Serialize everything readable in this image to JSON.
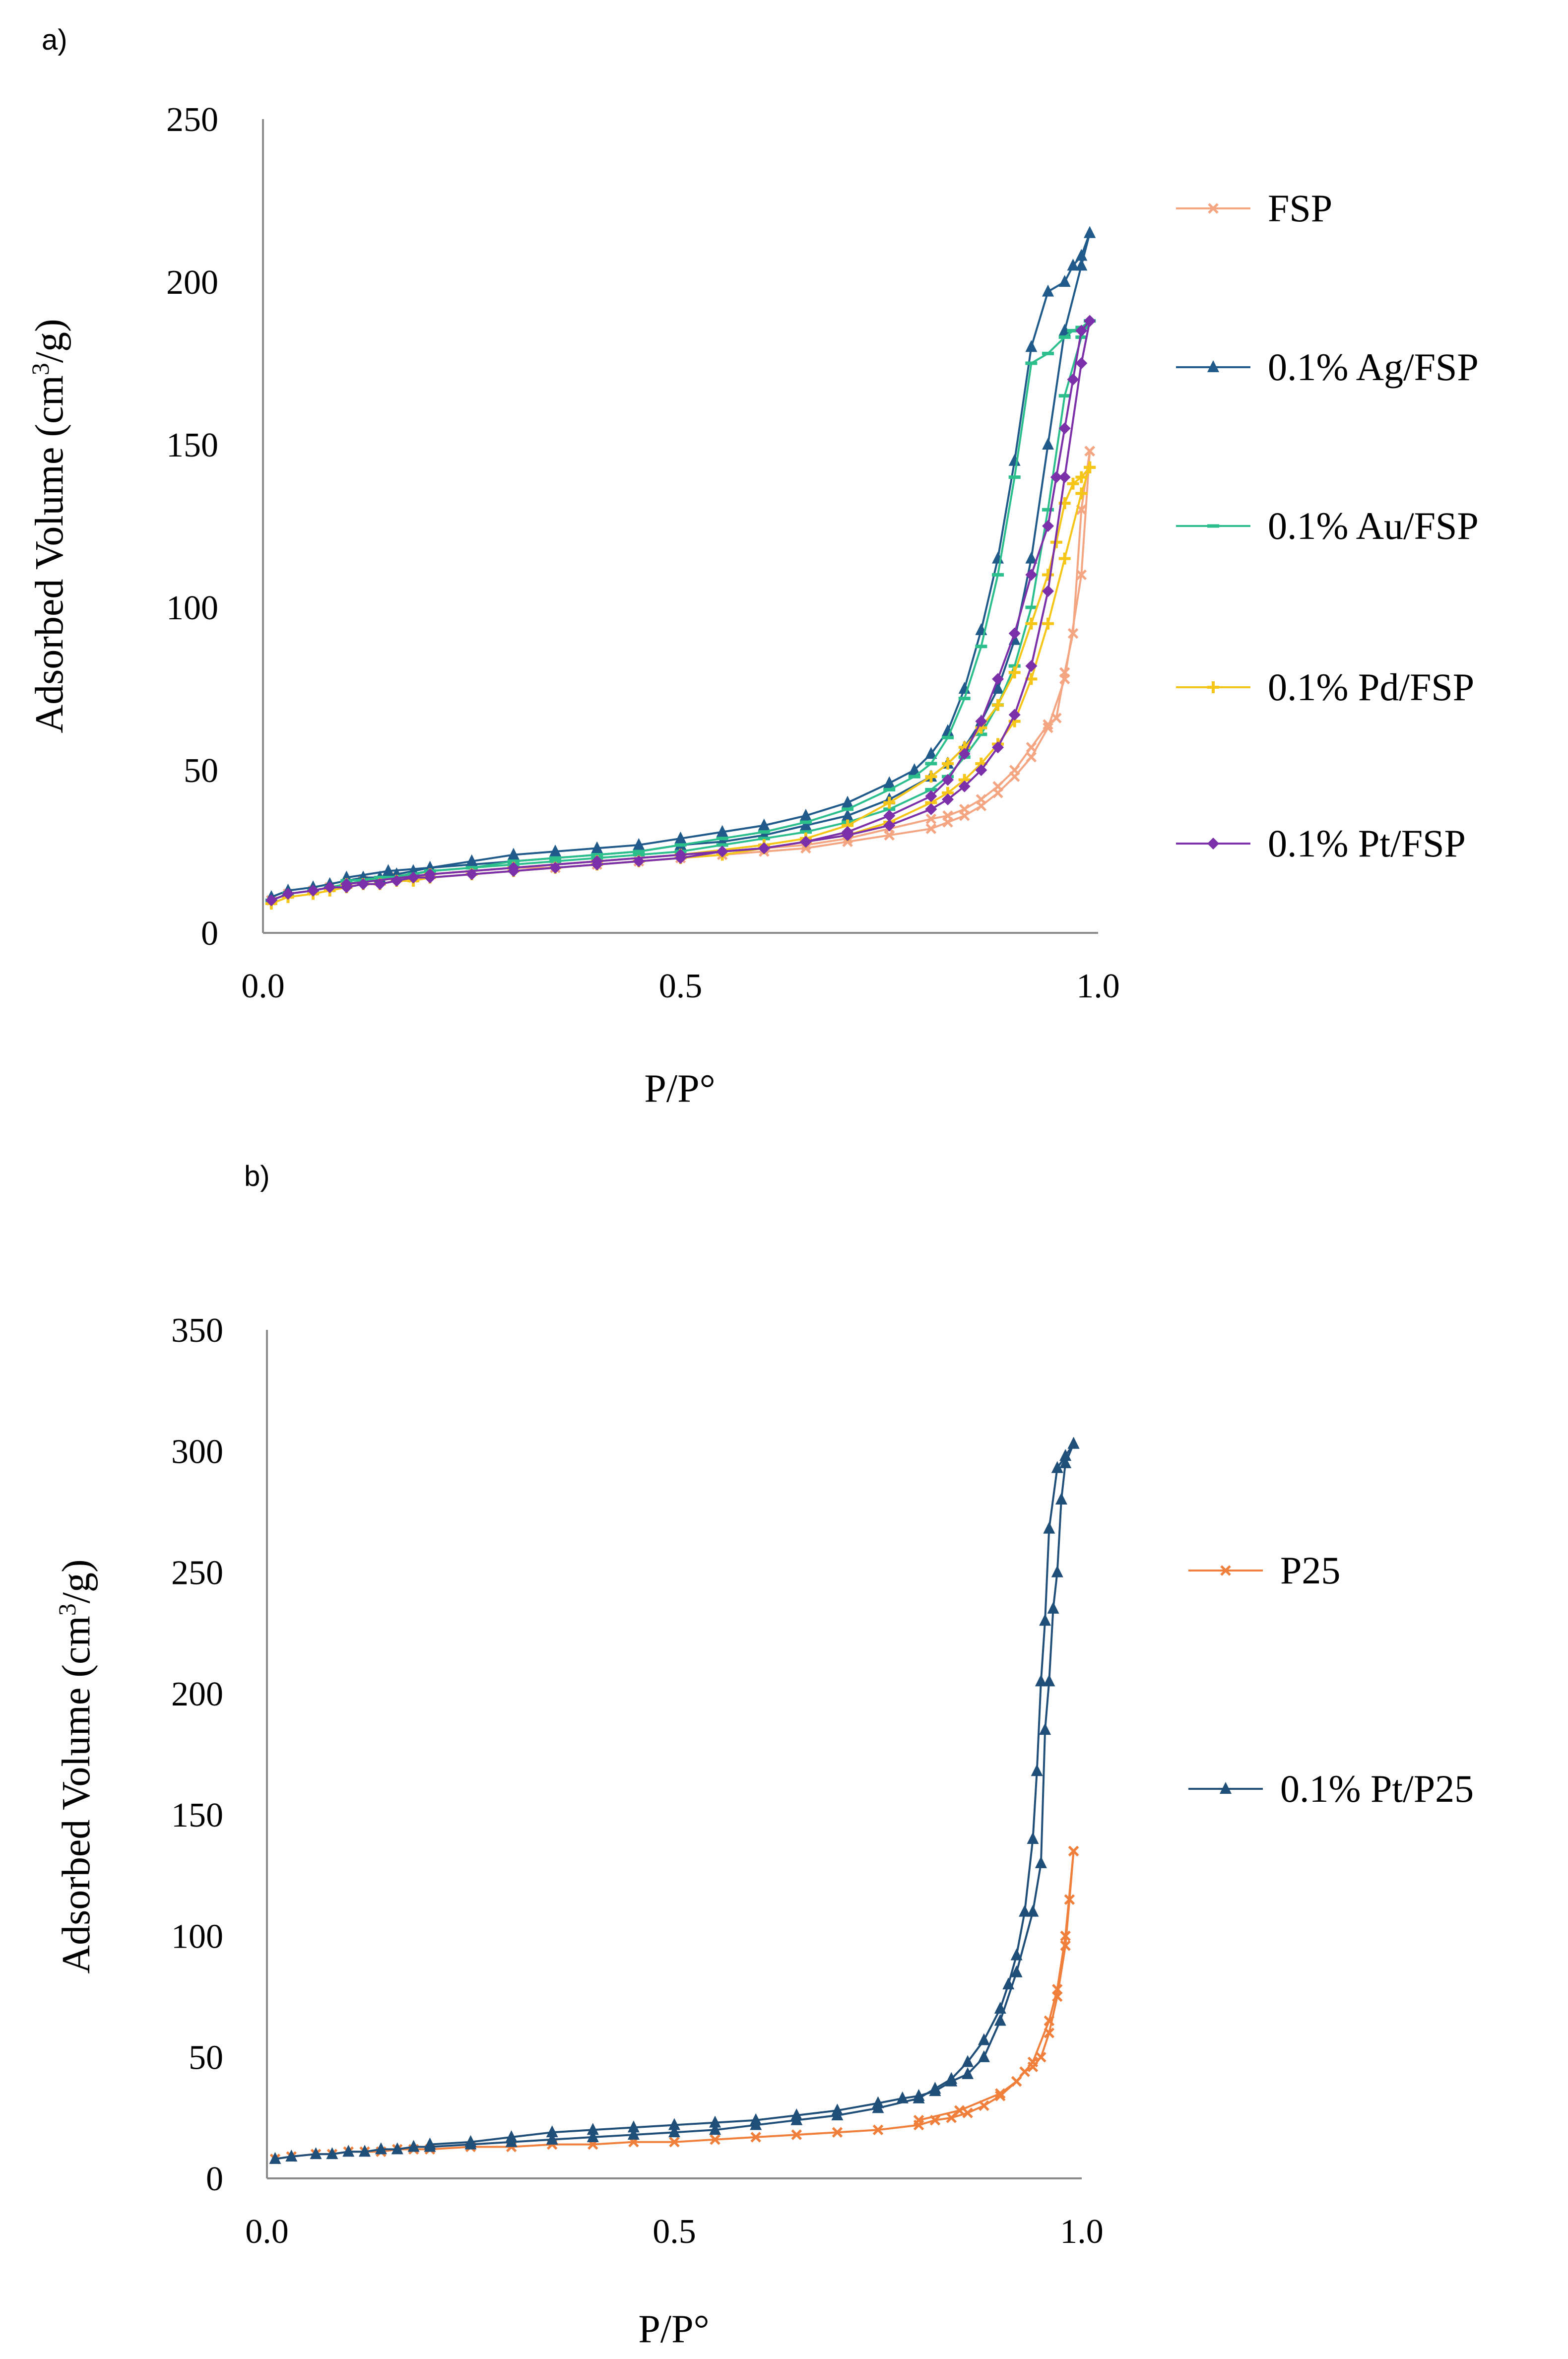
{
  "chart_data": [
    {
      "id": "a",
      "panel_label": "a)",
      "type": "line",
      "xlabel": "P/P°",
      "ylabel_prefix": "Adsorbed Volume (cm",
      "ylabel_sup": "3",
      "ylabel_suffix": "/g)",
      "xlim": [
        0,
        1
      ],
      "ylim": [
        0,
        250
      ],
      "xticks": [
        0,
        0.5,
        1
      ],
      "xtick_labels": [
        "0.0",
        "0.5",
        "1.0"
      ],
      "yticks": [
        0,
        50,
        100,
        150,
        200,
        250
      ],
      "ytick_labels": [
        "0",
        "50",
        "100",
        "150",
        "200",
        "250"
      ],
      "legend_position": "right",
      "series": [
        {
          "name": "FSP",
          "color": "#f4a582",
          "marker": "x",
          "adsorption": {
            "x": [
              0.01,
              0.03,
              0.06,
              0.08,
              0.1,
              0.12,
              0.14,
              0.16,
              0.18,
              0.2,
              0.25,
              0.3,
              0.35,
              0.4,
              0.45,
              0.5,
              0.55,
              0.6,
              0.65,
              0.7,
              0.75,
              0.8,
              0.82,
              0.84,
              0.86,
              0.88,
              0.9,
              0.92,
              0.94,
              0.96,
              0.98,
              0.99
            ],
            "y": [
              10,
              12,
              13,
              14,
              15,
              16,
              16,
              17,
              17,
              18,
              19,
              20,
              20,
              21,
              22,
              23,
              24,
              25,
              26,
              28,
              30,
              32,
              34,
              36,
              39,
              43,
              48,
              54,
              63,
              78,
              110,
              148
            ]
          },
          "desorption": {
            "x": [
              0.99,
              0.98,
              0.97,
              0.96,
              0.95,
              0.94,
              0.92,
              0.9,
              0.88,
              0.86,
              0.84,
              0.82,
              0.8,
              0.75,
              0.7,
              0.65,
              0.6,
              0.5,
              0.4,
              0.3,
              0.2,
              0.1
            ],
            "y": [
              148,
              130,
              92,
              80,
              66,
              64,
              57,
              50,
              45,
              41,
              38,
              36,
              35,
              32,
              29,
              27,
              26,
              24,
              22,
              20,
              18,
              15
            ]
          }
        },
        {
          "name": "0.1% Ag/FSP",
          "color": "#1f5a8a",
          "marker": "triangle",
          "adsorption": {
            "x": [
              0.01,
              0.03,
              0.06,
              0.08,
              0.1,
              0.12,
              0.14,
              0.16,
              0.18,
              0.2,
              0.25,
              0.3,
              0.35,
              0.4,
              0.45,
              0.5,
              0.55,
              0.6,
              0.65,
              0.7,
              0.75,
              0.8,
              0.82,
              0.84,
              0.86,
              0.88,
              0.9,
              0.92,
              0.94,
              0.96,
              0.98,
              0.99
            ],
            "y": [
              11,
              13,
              14,
              15,
              16,
              17,
              17,
              18,
              19,
              20,
              21,
              22,
              23,
              24,
              25,
              27,
              28,
              30,
              33,
              36,
              41,
              48,
              52,
              57,
              65,
              75,
              90,
              115,
              150,
              185,
              205,
              215
            ]
          },
          "desorption": {
            "x": [
              0.99,
              0.98,
              0.97,
              0.96,
              0.94,
              0.92,
              0.9,
              0.88,
              0.86,
              0.84,
              0.82,
              0.8,
              0.78,
              0.75,
              0.7,
              0.65,
              0.6,
              0.55,
              0.5,
              0.45,
              0.4,
              0.35,
              0.3,
              0.25,
              0.2,
              0.15,
              0.1
            ],
            "y": [
              215,
              208,
              205,
              200,
              197,
              180,
              145,
              115,
              93,
              75,
              62,
              55,
              50,
              46,
              40,
              36,
              33,
              31,
              29,
              27,
              26,
              25,
              24,
              22,
              20,
              19,
              17
            ]
          }
        },
        {
          "name": "0.1% Au/FSP",
          "color": "#2cbf8c",
          "marker": "dash",
          "adsorption": {
            "x": [
              0.01,
              0.03,
              0.06,
              0.08,
              0.1,
              0.12,
              0.14,
              0.16,
              0.18,
              0.2,
              0.25,
              0.3,
              0.35,
              0.4,
              0.45,
              0.5,
              0.55,
              0.6,
              0.65,
              0.7,
              0.75,
              0.8,
              0.82,
              0.84,
              0.86,
              0.88,
              0.9,
              0.92,
              0.94,
              0.96,
              0.98,
              0.99
            ],
            "y": [
              10,
              12,
              13,
              14,
              15,
              16,
              17,
              17,
              18,
              19,
              20,
              21,
              22,
              23,
              24,
              25,
              27,
              29,
              31,
              34,
              38,
              44,
              48,
              54,
              61,
              70,
              82,
              100,
              130,
              165,
              183,
              188
            ]
          },
          "desorption": {
            "x": [
              0.99,
              0.98,
              0.97,
              0.96,
              0.94,
              0.92,
              0.9,
              0.88,
              0.86,
              0.84,
              0.82,
              0.8,
              0.78,
              0.75,
              0.7,
              0.65,
              0.6,
              0.55,
              0.5,
              0.45,
              0.4,
              0.35,
              0.3,
              0.25,
              0.2,
              0.15,
              0.1
            ],
            "y": [
              188,
              186,
              185,
              183,
              178,
              175,
              140,
              110,
              88,
              72,
              60,
              52,
              48,
              44,
              38,
              34,
              31,
              29,
              27,
              25,
              24,
              23,
              22,
              20,
              19,
              17,
              16
            ]
          }
        },
        {
          "name": "0.1% Pd/FSP",
          "color": "#f5c518",
          "marker": "plus",
          "adsorption": {
            "x": [
              0.01,
              0.03,
              0.06,
              0.08,
              0.1,
              0.12,
              0.14,
              0.16,
              0.18,
              0.2,
              0.25,
              0.3,
              0.35,
              0.4,
              0.45,
              0.5,
              0.55,
              0.6,
              0.65,
              0.7,
              0.75,
              0.8,
              0.82,
              0.84,
              0.86,
              0.88,
              0.9,
              0.92,
              0.94,
              0.96,
              0.98,
              0.99
            ],
            "y": [
              9,
              11,
              12,
              13,
              14,
              15,
              15,
              16,
              16,
              17,
              18,
              19,
              20,
              21,
              22,
              23,
              24,
              26,
              28,
              30,
              34,
              40,
              43,
              47,
              52,
              58,
              65,
              78,
              95,
              115,
              135,
              143
            ]
          },
          "desorption": {
            "x": [
              0.99,
              0.98,
              0.97,
              0.96,
              0.95,
              0.94,
              0.92,
              0.9,
              0.88,
              0.86,
              0.84,
              0.82,
              0.8,
              0.75,
              0.7,
              0.65,
              0.6,
              0.5,
              0.4,
              0.3,
              0.2,
              0.1
            ],
            "y": [
              143,
              140,
              138,
              132,
              120,
              110,
              95,
              80,
              70,
              63,
              57,
              52,
              48,
              40,
              33,
              29,
              27,
              24,
              22,
              20,
              18,
              15
            ]
          }
        },
        {
          "name": "0.1% Pt/FSP",
          "color": "#7b2fa8",
          "marker": "diamond",
          "adsorption": {
            "x": [
              0.01,
              0.03,
              0.06,
              0.08,
              0.1,
              0.12,
              0.14,
              0.16,
              0.18,
              0.2,
              0.25,
              0.3,
              0.35,
              0.4,
              0.45,
              0.5,
              0.55,
              0.6,
              0.65,
              0.7,
              0.75,
              0.8,
              0.82,
              0.84,
              0.86,
              0.88,
              0.9,
              0.92,
              0.94,
              0.96,
              0.98,
              0.99
            ],
            "y": [
              10,
              12,
              13,
              14,
              14,
              15,
              15,
              16,
              17,
              17,
              18,
              19,
              20,
              21,
              22,
              23,
              25,
              26,
              28,
              30,
              33,
              38,
              41,
              45,
              50,
              57,
              67,
              82,
              105,
              140,
              175,
              188
            ]
          },
          "desorption": {
            "x": [
              0.99,
              0.98,
              0.97,
              0.96,
              0.95,
              0.94,
              0.92,
              0.9,
              0.88,
              0.86,
              0.84,
              0.82,
              0.8,
              0.75,
              0.7,
              0.65,
              0.6,
              0.5,
              0.4,
              0.3,
              0.2,
              0.1
            ],
            "y": [
              188,
              185,
              170,
              155,
              140,
              125,
              110,
              92,
              78,
              65,
              55,
              47,
              42,
              36,
              31,
              28,
              26,
              24,
              22,
              20,
              18,
              15
            ]
          }
        }
      ]
    },
    {
      "id": "b",
      "panel_label": "b)",
      "type": "line",
      "xlabel": "P/P°",
      "ylabel_prefix": "Adsorbed Volume (cm",
      "ylabel_sup": "3",
      "ylabel_suffix": "/g)",
      "xlim": [
        0,
        1
      ],
      "ylim": [
        0,
        350
      ],
      "xticks": [
        0,
        0.5,
        1
      ],
      "xtick_labels": [
        "0.0",
        "0.5",
        "1.0"
      ],
      "yticks": [
        0,
        50,
        100,
        150,
        200,
        250,
        300,
        350
      ],
      "ytick_labels": [
        "0",
        "50",
        "100",
        "150",
        "200",
        "250",
        "300",
        "350"
      ],
      "legend_position": "right",
      "series": [
        {
          "name": "P25",
          "color": "#f07f3c",
          "marker": "x",
          "adsorption": {
            "x": [
              0.01,
              0.03,
              0.06,
              0.08,
              0.1,
              0.12,
              0.14,
              0.16,
              0.18,
              0.2,
              0.25,
              0.3,
              0.35,
              0.4,
              0.45,
              0.5,
              0.55,
              0.6,
              0.65,
              0.7,
              0.75,
              0.8,
              0.82,
              0.84,
              0.86,
              0.88,
              0.9,
              0.92,
              0.94,
              0.96,
              0.97,
              0.98,
              0.99
            ],
            "y": [
              8,
              9,
              10,
              10,
              11,
              11,
              11,
              12,
              12,
              12,
              13,
              13,
              14,
              14,
              15,
              15,
              16,
              17,
              18,
              19,
              20,
              22,
              24,
              25,
              27,
              30,
              34,
              40,
              48,
              65,
              78,
              100,
              135
            ]
          },
          "desorption": {
            "x": [
              0.99,
              0.985,
              0.98,
              0.97,
              0.96,
              0.95,
              0.94,
              0.93,
              0.92,
              0.9,
              0.85,
              0.8
            ],
            "y": [
              135,
              115,
              96,
              75,
              60,
              50,
              46,
              44,
              40,
              35,
              28,
              24
            ]
          }
        },
        {
          "name": "0.1% Pt/P25",
          "color": "#1f4e79",
          "marker": "triangle",
          "adsorption": {
            "x": [
              0.01,
              0.03,
              0.06,
              0.08,
              0.1,
              0.12,
              0.14,
              0.16,
              0.18,
              0.2,
              0.25,
              0.3,
              0.35,
              0.4,
              0.45,
              0.5,
              0.55,
              0.6,
              0.65,
              0.7,
              0.75,
              0.8,
              0.82,
              0.84,
              0.86,
              0.88,
              0.9,
              0.91,
              0.92,
              0.93,
              0.94,
              0.945,
              0.95,
              0.955,
              0.96,
              0.97,
              0.98,
              0.99
            ],
            "y": [
              8,
              9,
              10,
              10,
              11,
              11,
              12,
              12,
              13,
              13,
              14,
              15,
              16,
              17,
              18,
              19,
              20,
              22,
              24,
              26,
              29,
              33,
              37,
              41,
              48,
              57,
              70,
              80,
              92,
              110,
              140,
              168,
              205,
              230,
              268,
              293,
              298,
              303
            ]
          },
          "desorption": {
            "x": [
              0.99,
              0.98,
              0.975,
              0.97,
              0.965,
              0.96,
              0.955,
              0.95,
              0.94,
              0.92,
              0.9,
              0.88,
              0.86,
              0.84,
              0.82,
              0.8,
              0.78,
              0.75,
              0.7,
              0.65,
              0.6,
              0.55,
              0.5,
              0.45,
              0.4,
              0.35,
              0.3,
              0.25,
              0.2
            ],
            "y": [
              303,
              295,
              280,
              250,
              235,
              205,
              185,
              130,
              110,
              85,
              65,
              50,
              43,
              40,
              36,
              34,
              33,
              31,
              28,
              26,
              24,
              23,
              22,
              21,
              20,
              19,
              17,
              15,
              14
            ]
          }
        }
      ]
    }
  ]
}
